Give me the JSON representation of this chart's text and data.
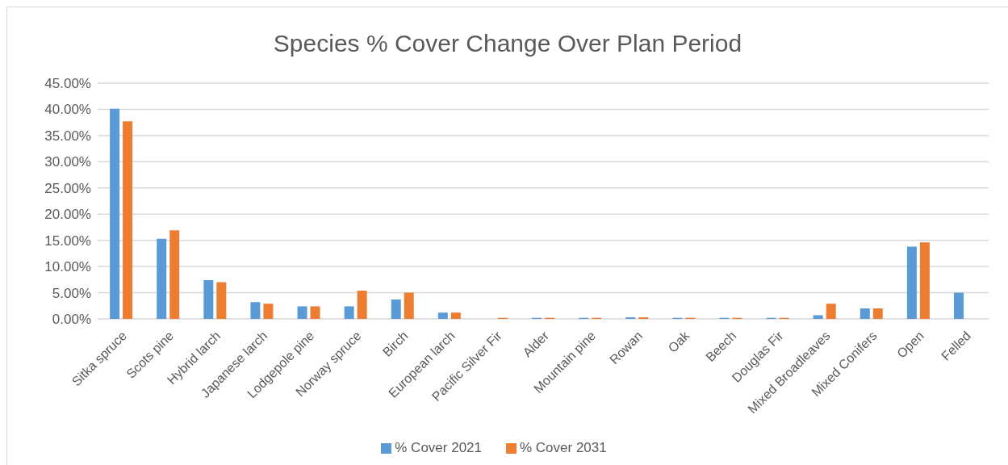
{
  "chart_data": {
    "type": "bar",
    "title": "Species % Cover Change Over Plan Period",
    "categories": [
      "Sitka spruce",
      "Scots pine",
      "Hybrid larch",
      "Japanese larch",
      "Lodgepole pine",
      "Norway spruce",
      "Birch",
      "European larch",
      "Pacific Silver Fir",
      "Alder",
      "Mountain pine",
      "Rowan",
      "Oak",
      "Beech",
      "Douglas Fir",
      "Mixed Broadleaves",
      "Mixed Conifers",
      "Open",
      "Felled"
    ],
    "series": [
      {
        "name": "% Cover 2021",
        "color": "#5b9bd5",
        "values": [
          40.1,
          15.3,
          7.4,
          3.2,
          2.4,
          2.4,
          3.7,
          1.2,
          0,
          0.2,
          0.2,
          0.3,
          0.2,
          0.2,
          0.2,
          0.7,
          2.0,
          13.8,
          5.0
        ]
      },
      {
        "name": "% Cover 2031",
        "color": "#ed7d31",
        "values": [
          37.7,
          16.9,
          7.0,
          2.9,
          2.4,
          5.4,
          5.0,
          1.2,
          0.2,
          0.2,
          0.2,
          0.3,
          0.2,
          0.2,
          0.2,
          2.9,
          2.0,
          14.6,
          0
        ]
      }
    ],
    "ylim": [
      0,
      45
    ],
    "yticks": [
      {
        "value": 0,
        "label": "0.00%"
      },
      {
        "value": 5,
        "label": "5.00%"
      },
      {
        "value": 10,
        "label": "10.00%"
      },
      {
        "value": 15,
        "label": "15.00%"
      },
      {
        "value": 20,
        "label": "20.00%"
      },
      {
        "value": 25,
        "label": "25.00%"
      },
      {
        "value": 30,
        "label": "30.00%"
      },
      {
        "value": 35,
        "label": "35.00%"
      },
      {
        "value": 40,
        "label": "40.00%"
      },
      {
        "value": 45,
        "label": "45.00%"
      }
    ],
    "grid": "y",
    "legend": "bottom"
  }
}
